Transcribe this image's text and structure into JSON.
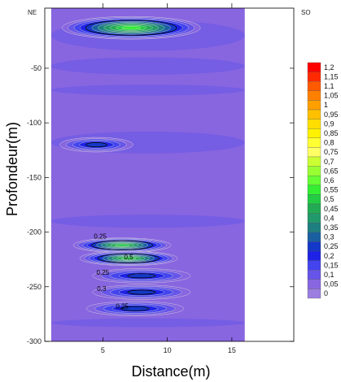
{
  "chart_data": {
    "type": "heatmap",
    "title": "",
    "xlabel": "Distance(m)",
    "ylabel": "Profondeur(m)",
    "xlim": [
      0.5,
      19.8
    ],
    "ylim": [
      -300,
      5
    ],
    "data_extent_x": [
      1,
      16
    ],
    "x_ticks": [
      5,
      10,
      15
    ],
    "y_ticks": [
      -50,
      -100,
      -150,
      -200,
      -250,
      -300
    ],
    "x_tick_labels": [
      "5",
      "10",
      "15"
    ],
    "y_tick_labels": [
      "-50",
      "-100",
      "-150",
      "-200",
      "-250",
      "-300"
    ],
    "corner_labels": {
      "left": "NE",
      "right": "SO"
    },
    "colorbar": {
      "levels": [
        "1,2",
        "1,15",
        "1,1",
        "1,05",
        "1",
        "0,95",
        "0,9",
        "0,85",
        "0,8",
        "0,75",
        "0,7",
        "0,65",
        "0,6",
        "0,55",
        "0,5",
        "0,45",
        "0,4",
        "0,35",
        "0,3",
        "0,25",
        "0,2",
        "0,15",
        "0,1",
        "0,05",
        "0"
      ],
      "colors": [
        "#ff0000",
        "#ff2a00",
        "#ff5a00",
        "#ff8000",
        "#ff9f00",
        "#ffc000",
        "#ffde00",
        "#fff200",
        "#ffff33",
        "#ffff66",
        "#ccff33",
        "#99ff33",
        "#66ff33",
        "#33ee33",
        "#22cc44",
        "#22aa55",
        "#22996b",
        "#1e7f80",
        "#1a5fa0",
        "#1438c8",
        "#1e22e6",
        "#4444ee",
        "#6655e8",
        "#8866e0",
        "#9b7ee0"
      ]
    },
    "background_value": 0.05,
    "anomalies": [
      {
        "x": 7.2,
        "depth": -13,
        "peak": 0.55
      },
      {
        "x": 6.5,
        "depth": -212,
        "peak": 0.5
      },
      {
        "x": 7.0,
        "depth": -224,
        "peak": 0.5
      },
      {
        "x": 8.0,
        "depth": -240,
        "peak": 0.25
      },
      {
        "x": 8.0,
        "depth": -255,
        "peak": 0.25
      },
      {
        "x": 7.5,
        "depth": -270,
        "peak": 0.25
      },
      {
        "x": 4.5,
        "depth": -120,
        "peak": 0.25
      }
    ],
    "contour_labels": [
      {
        "text": "0,25",
        "x": 4.8,
        "depth": -206
      },
      {
        "text": "0,5",
        "x": 7.0,
        "depth": -225
      },
      {
        "text": "0,25",
        "x": 5.0,
        "depth": -239
      },
      {
        "text": "0,3",
        "x": 4.9,
        "depth": -254
      },
      {
        "text": "0,25",
        "x": 6.5,
        "depth": -270
      }
    ]
  }
}
